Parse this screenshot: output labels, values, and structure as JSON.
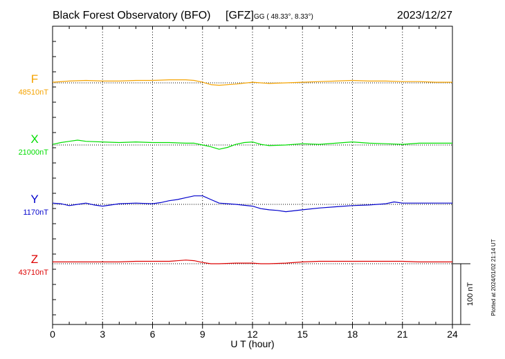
{
  "header": {
    "title": "Black Forest Observatory (BFO)",
    "institute": "[GFZ]",
    "coords": "GG ( 48.33°,   8.33°)",
    "date": "2023/12/27"
  },
  "footer_note": "Plotted at 2024/01/02 21:14 UT",
  "scale_bar_label": "100 nT",
  "colors": {
    "F": "#f5a300",
    "X": "#00dd00",
    "Y": "#0000cc",
    "Z": "#dd0000",
    "axis": "#000000",
    "grid": "#000000"
  },
  "chart_data": {
    "type": "line",
    "title": "Black Forest Observatory (BFO)",
    "xlabel": "U T (hour)",
    "xlim": [
      0,
      24
    ],
    "x_ticks": [
      0,
      3,
      6,
      9,
      12,
      15,
      18,
      21,
      24
    ],
    "grid": "vertical dotted every 3 h",
    "y_unit_note": "each trace offset by its baseline; scale bar = 100 nT",
    "series": [
      {
        "name": "F",
        "baseline_label": "48510nT",
        "baseline": 48510,
        "x": [
          0,
          1,
          2,
          3,
          4,
          5,
          6,
          7,
          8,
          8.5,
          9,
          9.5,
          10,
          11,
          12,
          13,
          14,
          15,
          16,
          17,
          18,
          19,
          20,
          21,
          22,
          23,
          24
        ],
        "y": [
          48511,
          48513,
          48514,
          48513,
          48513,
          48514,
          48514,
          48515,
          48515,
          48514,
          48511,
          48507,
          48506,
          48508,
          48511,
          48509,
          48510,
          48511,
          48512,
          48513,
          48514,
          48513,
          48513,
          48512,
          48512,
          48511,
          48511
        ]
      },
      {
        "name": "X",
        "baseline_label": "21000nT",
        "baseline": 21000,
        "x": [
          0,
          0.5,
          1,
          1.5,
          2,
          3,
          4,
          5,
          6,
          7,
          8,
          8.5,
          9,
          9.5,
          10,
          10.5,
          11,
          11.5,
          12,
          12.5,
          13,
          14,
          15,
          16,
          17,
          18,
          18.5,
          19,
          20,
          21,
          22,
          23,
          24
        ],
        "y": [
          21001,
          21004,
          21006,
          21008,
          21006,
          21005,
          21004,
          21005,
          21004,
          21004,
          21003,
          21003,
          21000,
          20997,
          20993,
          20996,
          21001,
          21004,
          21005,
          21001,
          20999,
          21000,
          21002,
          21001,
          21003,
          21005,
          21004,
          21003,
          21002,
          21001,
          21003,
          21003,
          21003
        ]
      },
      {
        "name": "Y",
        "baseline_label": "1170nT",
        "baseline": 1170,
        "x": [
          0,
          0.5,
          1,
          1.5,
          2,
          2.5,
          3,
          3.5,
          4,
          5,
          6,
          6.5,
          7,
          7.5,
          8,
          8.5,
          9,
          9.5,
          10,
          10.5,
          11,
          12,
          12.5,
          13,
          13.5,
          14,
          15,
          16,
          17,
          18,
          19,
          20,
          20.5,
          21,
          22,
          23,
          24
        ],
        "y": [
          1172,
          1171,
          1168,
          1170,
          1172,
          1169,
          1167,
          1169,
          1171,
          1172,
          1171,
          1173,
          1176,
          1178,
          1181,
          1184,
          1184,
          1178,
          1172,
          1171,
          1170,
          1167,
          1163,
          1161,
          1160,
          1158,
          1161,
          1164,
          1166,
          1168,
          1169,
          1171,
          1174,
          1172,
          1172,
          1172,
          1172
        ]
      },
      {
        "name": "Z",
        "baseline_label": "43710nT",
        "baseline": 43710,
        "x": [
          0,
          1,
          2,
          3,
          4,
          5,
          6,
          7,
          8,
          8.5,
          9,
          9.5,
          10,
          11,
          12,
          12.5,
          13,
          14,
          15,
          16,
          17,
          18,
          19,
          20,
          21,
          22,
          23,
          24
        ],
        "y": [
          43713,
          43713,
          43713,
          43713,
          43713,
          43714,
          43714,
          43714,
          43716,
          43715,
          43712,
          43710,
          43710,
          43711,
          43711,
          43710,
          43710,
          43711,
          43713,
          43714,
          43714,
          43714,
          43714,
          43714,
          43714,
          43713,
          43713,
          43713
        ]
      }
    ]
  }
}
